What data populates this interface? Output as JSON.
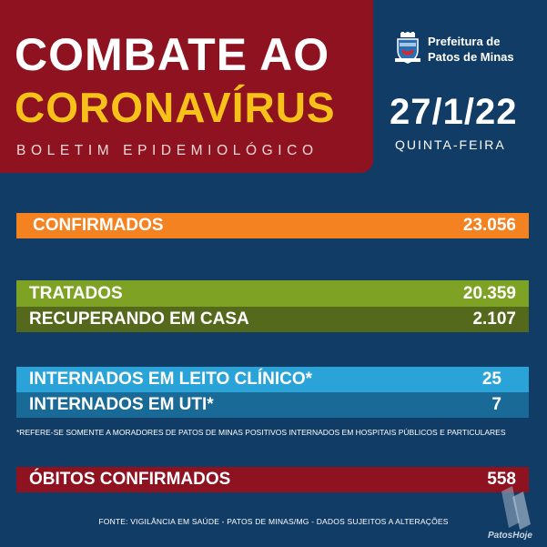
{
  "header": {
    "title_line1": "COMBATE AO",
    "title_line2": "CORONAVÍRUS",
    "subtitle": "BOLETIM EPIDEMIOLÓGICO"
  },
  "branding": {
    "prefeitura_line1": "Prefeitura de",
    "prefeitura_line2": "Patos de Minas",
    "watermark": "PatosHoje"
  },
  "date": {
    "value": "27/1/22",
    "weekday": "QUINTA-FEIRA"
  },
  "stats": {
    "confirmados": {
      "label": "CONFIRMADOS",
      "value": "23.056",
      "color": "#f58220"
    },
    "tratados": {
      "label": "TRATADOS",
      "value": "20.359",
      "color": "#7ea324"
    },
    "recuperando": {
      "label": "RECUPERANDO EM CASA",
      "value": "2.107",
      "color": "#55691c"
    },
    "leito": {
      "label": "INTERNADOS EM LEITO CLÍNICO*",
      "value": "25",
      "color": "#2aa3d8"
    },
    "uti": {
      "label": "INTERNADOS EM UTI*",
      "value": "7",
      "color": "#1a6a97"
    },
    "obitos": {
      "label": "ÓBITOS CONFIRMADOS",
      "value": "558",
      "color": "#8e1220"
    }
  },
  "note": "*REFERE-SE SOMENTE A MORADORES DE PATOS DE MINAS POSITIVOS INTERNADOS EM HOSPITAIS PÚBLICOS E PARTICULARES",
  "footer": "FONTE: VIGILÂNCIA EM SAÚDE - PATOS DE MINAS/MG - DADOS SUJEITOS A ALTERAÇÕES",
  "theme": {
    "background": "#113c65",
    "header_bg": "#8e1220",
    "accent": "#f6c21a"
  }
}
